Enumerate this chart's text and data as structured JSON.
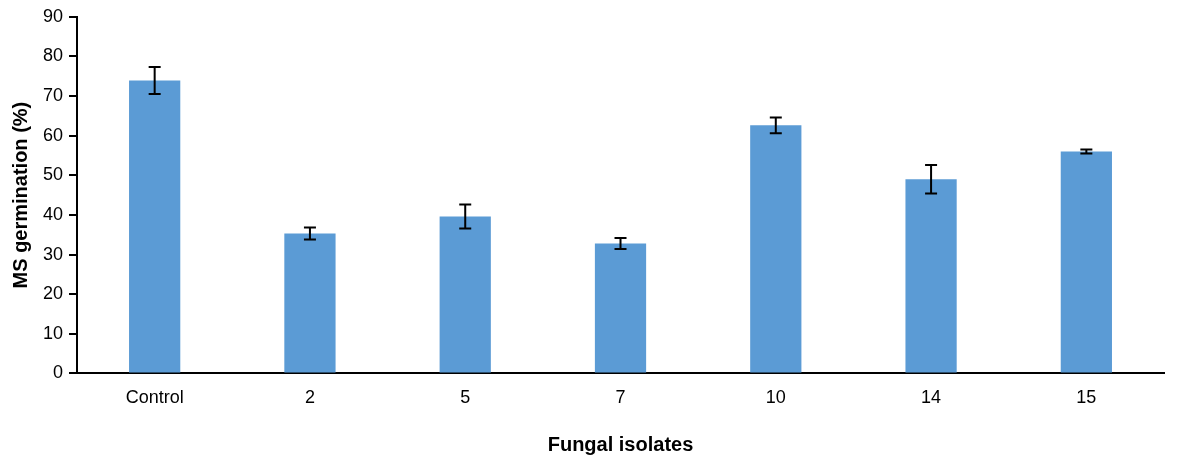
{
  "chart_data": {
    "type": "bar",
    "xlabel": "Fungal isolates",
    "ylabel": "MS germination (%)",
    "categories": [
      "Control",
      "2",
      "5",
      "7",
      "10",
      "14",
      "15"
    ],
    "values": [
      73.9,
      35.3,
      39.6,
      32.8,
      62.6,
      49.0,
      56.0
    ],
    "errors": [
      3.4,
      1.5,
      3.0,
      1.4,
      2.0,
      3.6,
      0.5
    ],
    "color": "#5b9bd5",
    "ylim": [
      0,
      90
    ],
    "yticks": [
      0,
      10,
      20,
      30,
      40,
      50,
      60,
      70,
      80,
      90
    ],
    "grid": false,
    "legend": false
  }
}
